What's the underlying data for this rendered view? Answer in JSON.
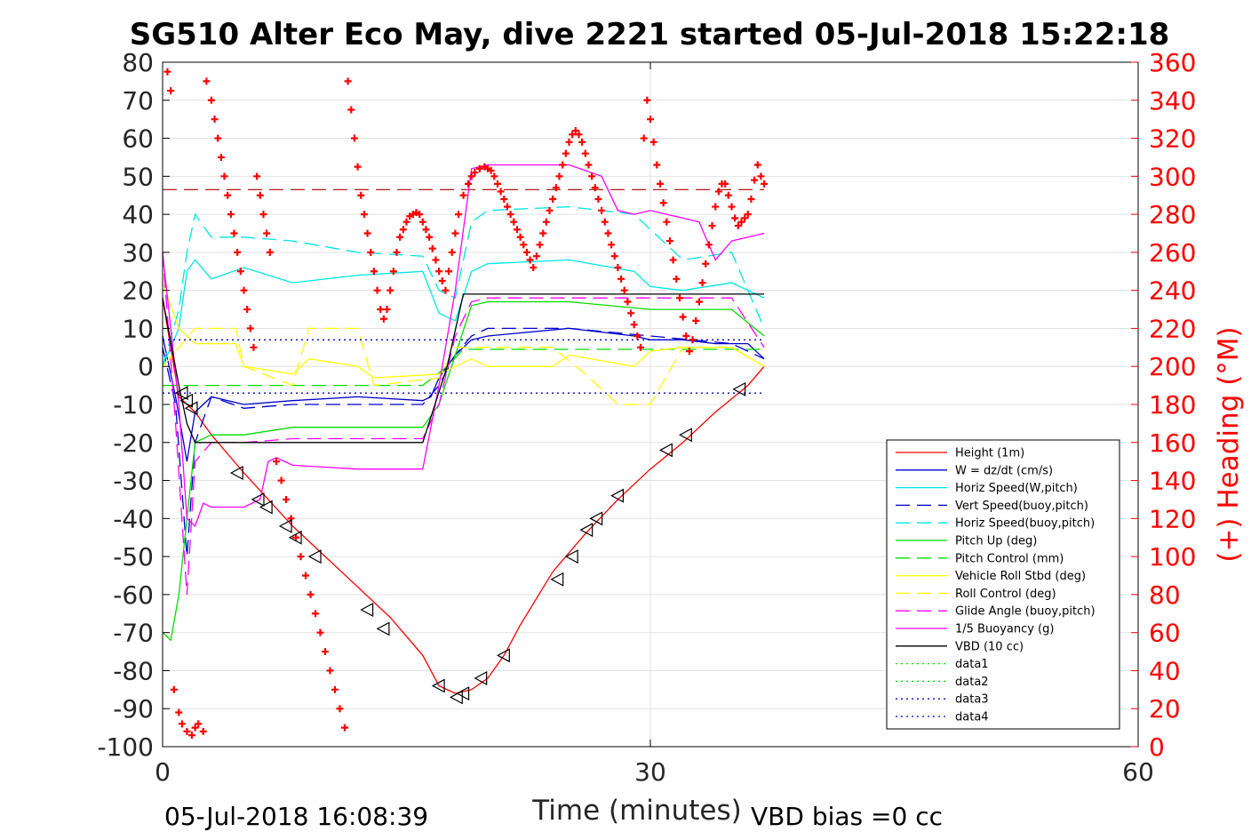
{
  "chart_data": {
    "type": "line",
    "title": "SG510 Alter Eco May, dive 2221 started 05-Jul-2018 15:22:18",
    "xlabel": "Time (minutes)",
    "ylabel_left": "",
    "ylabel_right": "(+) Heading (°M)",
    "xlim": [
      0,
      60
    ],
    "ylim_left": [
      -100,
      80
    ],
    "ylim_right": [
      0,
      360
    ],
    "x_ticks": [
      0,
      30,
      60
    ],
    "y_ticks_left": [
      80,
      70,
      60,
      50,
      40,
      30,
      20,
      10,
      0,
      -10,
      -20,
      -30,
      -40,
      -50,
      -60,
      -70,
      -80,
      -90,
      -100
    ],
    "y_ticks_right": [
      360,
      340,
      320,
      300,
      280,
      260,
      240,
      220,
      200,
      180,
      160,
      140,
      120,
      100,
      80,
      60,
      40,
      20,
      0
    ],
    "grid": true,
    "legend_position": "lower-right",
    "footer_left": "05-Jul-2018 16:08:39",
    "footer_right": "VBD bias =0 cc",
    "colors": {
      "red": "#ff0000",
      "blue": "#0000cc",
      "cyan": "#00e5e5",
      "green": "#00dd00",
      "yellow": "#ffff00",
      "magenta": "#ff00ff",
      "black": "#000000",
      "darkred": "#aa0000",
      "axis_right": "#ff0000"
    },
    "series": [
      {
        "name": "Height (1m)",
        "style": "solid",
        "color": "red",
        "x": [
          0,
          1,
          2,
          3,
          5,
          8,
          10,
          12,
          14,
          16,
          17,
          18,
          19,
          20,
          21,
          22,
          24,
          26,
          28,
          30,
          32,
          34,
          36,
          37
        ],
        "y": [
          18,
          -8,
          -12,
          -18,
          -28,
          -42,
          -50,
          -58,
          -66,
          -76,
          -84,
          -86,
          -85,
          -82,
          -76,
          -68,
          -54,
          -44,
          -35,
          -27,
          -20,
          -12,
          -5,
          0
        ]
      },
      {
        "name": "W = dz/dt (cm/s)",
        "style": "solid",
        "color": "blue",
        "x": [
          0,
          0.8,
          1.5,
          2,
          3,
          5,
          8,
          12,
          16,
          16.5,
          17,
          17.5,
          18,
          19,
          20,
          25,
          29,
          30,
          32,
          34,
          36,
          37
        ],
        "y": [
          8,
          -8,
          -25,
          -12,
          -8,
          -10,
          -9,
          -8,
          -9,
          -8,
          -3,
          0,
          3,
          7,
          8,
          10,
          8,
          7,
          7,
          6,
          6,
          2
        ]
      },
      {
        "name": "Horiz Speed(W,pitch)",
        "style": "solid",
        "color": "cyan",
        "x": [
          0,
          0.5,
          1,
          1.5,
          2,
          3,
          5,
          8,
          12,
          16,
          17,
          18,
          19,
          20,
          25,
          29,
          30,
          32,
          35,
          37
        ],
        "y": [
          0,
          5,
          10,
          25,
          28,
          23,
          26,
          22,
          24,
          25,
          14,
          12,
          25,
          27,
          28,
          25,
          21,
          20,
          22,
          18
        ]
      },
      {
        "name": "Vert Speed(buoy,pitch)",
        "style": "dashed",
        "color": "blue",
        "x": [
          0,
          0.8,
          1.5,
          2,
          3,
          5,
          8,
          12,
          16,
          17,
          18,
          19,
          20,
          25,
          30,
          35,
          37
        ],
        "y": [
          5,
          -10,
          -50,
          -20,
          -8,
          -11,
          -10,
          -10,
          -10,
          -5,
          3,
          8,
          10,
          10,
          8,
          6,
          2
        ]
      },
      {
        "name": "Horiz Speed(buoy,pitch)",
        "style": "dashed",
        "color": "cyan",
        "x": [
          0,
          1,
          1.5,
          2,
          3,
          5,
          8,
          12,
          16,
          17,
          18,
          19,
          20,
          25,
          29,
          30,
          32,
          35,
          37
        ],
        "y": [
          0,
          15,
          30,
          40,
          34,
          34,
          33,
          30,
          29,
          20,
          18,
          38,
          41,
          42,
          40,
          36,
          28,
          30,
          10
        ]
      },
      {
        "name": "Pitch Up (deg)",
        "style": "solid",
        "color": "green",
        "x": [
          0,
          0.5,
          1,
          1.5,
          2,
          3,
          5,
          8,
          12,
          16,
          17,
          18,
          19,
          20,
          25,
          30,
          35,
          37
        ],
        "y": [
          -70,
          -72,
          -60,
          -40,
          -20,
          -18,
          -18,
          -16,
          -16,
          -16,
          -10,
          3,
          16,
          17,
          17,
          15,
          15,
          8
        ]
      },
      {
        "name": "Pitch Control (mm)",
        "style": "dashed",
        "color": "green",
        "x": [
          0,
          8,
          16,
          17.5,
          18.5,
          37
        ],
        "y": [
          -5,
          -5,
          -5,
          0,
          4.5,
          4.5
        ]
      },
      {
        "name": "Vehicle Roll Stbd (deg)",
        "style": "solid",
        "color": "yellow",
        "x": [
          0,
          1,
          2,
          4.5,
          5,
          8,
          9,
          12,
          13,
          17,
          18,
          19,
          20,
          24,
          25,
          29,
          30,
          32,
          35,
          37
        ],
        "y": [
          22,
          10,
          6,
          6,
          0,
          -2,
          2,
          0,
          -3,
          -2,
          0,
          2,
          0,
          0,
          3,
          0,
          4,
          5,
          5,
          0
        ]
      },
      {
        "name": "Roll Control (deg)",
        "style": "dashed",
        "color": "yellow",
        "x": [
          0,
          1,
          2,
          4.5,
          5,
          8,
          9,
          12,
          13,
          17,
          18,
          20,
          24,
          26,
          28,
          29,
          30,
          32,
          35,
          37
        ],
        "y": [
          0,
          5,
          10,
          10,
          0,
          -5,
          10,
          10,
          -5,
          -3,
          5,
          5,
          5,
          -2,
          -10,
          -10,
          -10,
          5,
          5,
          0
        ]
      },
      {
        "name": "Glide Angle (buoy,pitch)",
        "style": "dashed",
        "color": "magenta",
        "x": [
          0,
          0.8,
          1.5,
          2,
          3,
          5,
          8,
          12,
          16,
          17,
          18,
          19,
          20,
          25,
          30,
          35,
          37
        ],
        "y": [
          30,
          -15,
          -60,
          -25,
          -20,
          -20,
          -19,
          -19,
          -19,
          -10,
          8,
          17,
          18,
          18,
          18,
          18,
          5
        ]
      },
      {
        "name": "1/5 Buoyancy (g)",
        "style": "solid",
        "color": "magenta",
        "x": [
          0,
          1,
          1.5,
          2,
          2.5,
          3,
          5,
          6,
          6.5,
          7,
          8,
          12,
          16,
          17,
          18,
          19,
          20,
          25,
          27,
          28,
          29,
          30,
          31,
          33,
          34,
          35,
          37
        ],
        "y": [
          30,
          -10,
          -40,
          -42,
          -36,
          -37,
          -37,
          -35,
          -25,
          -24,
          -26,
          -27,
          -27,
          -5,
          20,
          52,
          53,
          53,
          50,
          41,
          40,
          41,
          40,
          38,
          28,
          33,
          35
        ]
      },
      {
        "name": "VBD (10 cc)",
        "style": "solid",
        "color": "black",
        "x": [
          0,
          1,
          1.5,
          2,
          16,
          17.5,
          18.5,
          37
        ],
        "y": [
          18,
          -5,
          -15,
          -20,
          -20,
          0,
          19,
          19
        ]
      },
      {
        "name": "data1",
        "style": "dotted",
        "color": "green",
        "x": [],
        "y": []
      },
      {
        "name": "data2",
        "style": "dotted",
        "color": "green",
        "x": [],
        "y": []
      },
      {
        "name": "data3",
        "style": "dotted",
        "color": "blue",
        "x": [
          0,
          37
        ],
        "y": [
          7,
          7
        ]
      },
      {
        "name": "data4",
        "style": "dotted",
        "color": "blue",
        "x": [
          0,
          37
        ],
        "y": [
          -7,
          -7
        ]
      }
    ],
    "hline_darkred_dashed": 46.5,
    "heading_points_right_axis": {
      "x": [
        0.3,
        0.5,
        0.7,
        1,
        1.2,
        1.5,
        1.8,
        2,
        2.2,
        2.5,
        2.7,
        3,
        3.2,
        3.4,
        3.6,
        3.8,
        4,
        4.2,
        4.4,
        4.6,
        4.8,
        5,
        5.2,
        5.4,
        5.6,
        5.8,
        6,
        6.2,
        6.4,
        6.6,
        7,
        7.3,
        7.6,
        7.9,
        8.2,
        8.5,
        8.8,
        9.1,
        9.4,
        9.7,
        10,
        10.3,
        10.6,
        10.9,
        11.2,
        11.4,
        11.6,
        11.8,
        12,
        12.2,
        12.4,
        12.6,
        12.8,
        13,
        13.2,
        13.4,
        13.6,
        13.8,
        14,
        14.2,
        14.4,
        14.6,
        14.8,
        15,
        15.2,
        15.4,
        15.6,
        15.8,
        16,
        16.2,
        16.4,
        16.6,
        16.8,
        17,
        17.2,
        17.4,
        17.6,
        17.8,
        18,
        18.2,
        18.5,
        18.8,
        19,
        19.2,
        19.5,
        19.8,
        20,
        20.2,
        20.4,
        20.6,
        20.8,
        21,
        21.2,
        21.4,
        21.6,
        21.8,
        22,
        22.2,
        22.4,
        22.6,
        22.8,
        23,
        23.2,
        23.4,
        23.6,
        23.8,
        24,
        24.2,
        24.4,
        24.6,
        24.8,
        25,
        25.2,
        25.4,
        25.6,
        25.8,
        26,
        26.2,
        26.4,
        26.6,
        26.8,
        27,
        27.2,
        27.4,
        27.6,
        27.8,
        28,
        28.2,
        28.4,
        28.6,
        28.8,
        29,
        29.2,
        29.4,
        29.6,
        29.8,
        30,
        30.2,
        30.4,
        30.6,
        30.8,
        31,
        31.2,
        31.4,
        31.6,
        31.8,
        32,
        32.2,
        32.4,
        32.6,
        32.8,
        33,
        33.2,
        33.4,
        33.6,
        33.8,
        34,
        34.2,
        34.4,
        34.6,
        34.8,
        35,
        35.2,
        35.4,
        35.6,
        35.8,
        36,
        36.2,
        36.4,
        36.6,
        36.8,
        37
      ],
      "y": [
        355,
        345,
        30,
        18,
        12,
        8,
        6,
        10,
        12,
        8,
        350,
        340,
        330,
        320,
        310,
        300,
        290,
        280,
        270,
        260,
        250,
        240,
        230,
        220,
        210,
        300,
        290,
        280,
        270,
        260,
        150,
        140,
        130,
        120,
        110,
        100,
        90,
        80,
        70,
        60,
        50,
        40,
        30,
        20,
        10,
        350,
        335,
        320,
        305,
        290,
        280,
        270,
        260,
        250,
        240,
        230,
        225,
        230,
        240,
        250,
        260,
        268,
        272,
        276,
        279,
        280,
        281,
        280,
        276,
        272,
        268,
        262,
        256,
        250,
        245,
        240,
        250,
        260,
        270,
        280,
        290,
        296,
        300,
        302,
        304,
        305,
        304,
        303,
        300,
        296,
        292,
        288,
        284,
        280,
        276,
        272,
        268,
        264,
        260,
        256,
        252,
        258,
        264,
        270,
        276,
        282,
        288,
        294,
        300,
        306,
        312,
        318,
        322,
        324,
        322,
        318,
        312,
        306,
        300,
        294,
        288,
        282,
        276,
        270,
        264,
        258,
        252,
        246,
        240,
        234,
        228,
        222,
        216,
        210,
        320,
        340,
        330,
        318,
        306,
        296,
        286,
        276,
        266,
        256,
        246,
        236,
        226,
        216,
        208,
        214,
        224,
        234,
        244,
        254,
        264,
        274,
        284,
        292,
        296,
        296,
        290,
        284,
        278,
        274,
        276,
        278,
        280,
        288,
        298,
        306,
        300,
        296
      ]
    },
    "vbd_markers": {
      "x": [
        1.2,
        1.5,
        1.8,
        4.6,
        5.9,
        6.4,
        7.6,
        8.2,
        9.4,
        12.6,
        13.6,
        17,
        18.1,
        18.5,
        19.6,
        21,
        24.3,
        25.2,
        26.1,
        26.7,
        28,
        31,
        32.2,
        35.5
      ],
      "y": [
        -7,
        -9,
        -11,
        -28,
        -35,
        -37,
        -42,
        -45,
        -50,
        -64,
        -69,
        -84,
        -87,
        -86,
        -82,
        -76,
        -56,
        -50,
        -43,
        -40,
        -34,
        -22,
        -18,
        -6
      ]
    }
  }
}
